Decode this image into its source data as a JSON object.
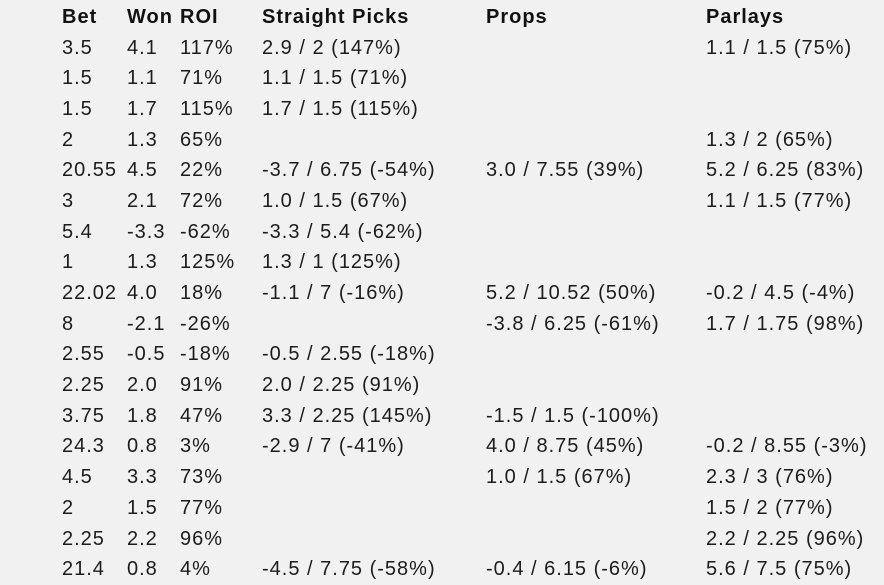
{
  "colors": {
    "background": "#f1f1f1",
    "header_text": "#111111",
    "neutral_text": "#1c1c1c",
    "positive": "#2e9b30",
    "negative": "#e9362c"
  },
  "chart_data": {
    "type": "table",
    "columns": [
      "Bet",
      "Won",
      "ROI",
      "Straight Picks",
      "Props",
      "Parlays"
    ],
    "column_keys": [
      "bet",
      "won",
      "roi",
      "straight-picks",
      "props",
      "parlays"
    ],
    "rows": [
      [
        {
          "t": "3.5",
          "c": "k"
        },
        {
          "t": "4.1",
          "c": "g"
        },
        {
          "t": "117%",
          "c": "g"
        },
        {
          "t": "2.9 / 2 (147%)",
          "c": "g"
        },
        {
          "t": "",
          "c": ""
        },
        {
          "t": "1.1 / 1.5 (75%)",
          "c": "g"
        }
      ],
      [
        {
          "t": "1.5",
          "c": "k"
        },
        {
          "t": "1.1",
          "c": "g"
        },
        {
          "t": "71%",
          "c": "g"
        },
        {
          "t": "1.1 / 1.5 (71%)",
          "c": "g"
        },
        {
          "t": "",
          "c": ""
        },
        {
          "t": "",
          "c": ""
        }
      ],
      [
        {
          "t": "1.5",
          "c": "k"
        },
        {
          "t": "1.7",
          "c": "g"
        },
        {
          "t": "115%",
          "c": "g"
        },
        {
          "t": "1.7 / 1.5 (115%)",
          "c": "g"
        },
        {
          "t": "",
          "c": ""
        },
        {
          "t": "",
          "c": ""
        }
      ],
      [
        {
          "t": "2",
          "c": "k"
        },
        {
          "t": "1.3",
          "c": "g"
        },
        {
          "t": "65%",
          "c": "g"
        },
        {
          "t": "",
          "c": ""
        },
        {
          "t": "",
          "c": ""
        },
        {
          "t": "1.3 / 2 (65%)",
          "c": "g"
        }
      ],
      [
        {
          "t": "20.55",
          "c": "k"
        },
        {
          "t": "4.5",
          "c": "g"
        },
        {
          "t": "22%",
          "c": "g"
        },
        {
          "t": "-3.7 / 6.75 (-54%)",
          "c": "r"
        },
        {
          "t": "3.0 / 7.55 (39%)",
          "c": "g"
        },
        {
          "t": "5.2 / 6.25 (83%)",
          "c": "g"
        }
      ],
      [
        {
          "t": "3",
          "c": "k"
        },
        {
          "t": "2.1",
          "c": "g"
        },
        {
          "t": "72%",
          "c": "g"
        },
        {
          "t": "1.0 / 1.5 (67%)",
          "c": "g"
        },
        {
          "t": "",
          "c": ""
        },
        {
          "t": "1.1 / 1.5 (77%)",
          "c": "g"
        }
      ],
      [
        {
          "t": "5.4",
          "c": "k"
        },
        {
          "t": "-3.3",
          "c": "r"
        },
        {
          "t": "-62%",
          "c": "r"
        },
        {
          "t": "-3.3 / 5.4 (-62%)",
          "c": "r"
        },
        {
          "t": "",
          "c": ""
        },
        {
          "t": "",
          "c": ""
        }
      ],
      [
        {
          "t": "1",
          "c": "k"
        },
        {
          "t": "1.3",
          "c": "g"
        },
        {
          "t": "125%",
          "c": "g"
        },
        {
          "t": "1.3 / 1 (125%)",
          "c": "g"
        },
        {
          "t": "",
          "c": ""
        },
        {
          "t": "",
          "c": ""
        }
      ],
      [
        {
          "t": "22.02",
          "c": "k"
        },
        {
          "t": "4.0",
          "c": "g"
        },
        {
          "t": "18%",
          "c": "g"
        },
        {
          "t": "-1.1 / 7 (-16%)",
          "c": "r"
        },
        {
          "t": "5.2 / 10.52 (50%)",
          "c": "g"
        },
        {
          "t": "-0.2 / 4.5 (-4%)",
          "c": "r"
        }
      ],
      [
        {
          "t": "8",
          "c": "k"
        },
        {
          "t": "-2.1",
          "c": "r"
        },
        {
          "t": "-26%",
          "c": "r"
        },
        {
          "t": "",
          "c": ""
        },
        {
          "t": "-3.8 / 6.25 (-61%)",
          "c": "r"
        },
        {
          "t": "1.7 / 1.75 (98%)",
          "c": "g"
        }
      ],
      [
        {
          "t": "2.55",
          "c": "k"
        },
        {
          "t": "-0.5",
          "c": "r"
        },
        {
          "t": "-18%",
          "c": "r"
        },
        {
          "t": "-0.5 / 2.55 (-18%)",
          "c": "r"
        },
        {
          "t": "",
          "c": ""
        },
        {
          "t": "",
          "c": ""
        }
      ],
      [
        {
          "t": "2.25",
          "c": "k"
        },
        {
          "t": "2.0",
          "c": "g"
        },
        {
          "t": "91%",
          "c": "g"
        },
        {
          "t": "2.0 / 2.25 (91%)",
          "c": "g"
        },
        {
          "t": "",
          "c": ""
        },
        {
          "t": "",
          "c": ""
        }
      ],
      [
        {
          "t": "3.75",
          "c": "k"
        },
        {
          "t": "1.8",
          "c": "g"
        },
        {
          "t": "47%",
          "c": "g"
        },
        {
          "t": "3.3 / 2.25 (145%)",
          "c": "g"
        },
        {
          "t": "-1.5 / 1.5 (-100%)",
          "c": "r"
        },
        {
          "t": "",
          "c": ""
        }
      ],
      [
        {
          "t": "24.3",
          "c": "k"
        },
        {
          "t": "0.8",
          "c": "g"
        },
        {
          "t": "3%",
          "c": "g"
        },
        {
          "t": "-2.9 / 7 (-41%)",
          "c": "r"
        },
        {
          "t": "4.0 / 8.75 (45%)",
          "c": "g"
        },
        {
          "t": "-0.2 / 8.55 (-3%)",
          "c": "r"
        }
      ],
      [
        {
          "t": "4.5",
          "c": "k"
        },
        {
          "t": "3.3",
          "c": "g"
        },
        {
          "t": "73%",
          "c": "g"
        },
        {
          "t": "",
          "c": ""
        },
        {
          "t": "1.0 / 1.5 (67%)",
          "c": "g"
        },
        {
          "t": "2.3 / 3 (76%)",
          "c": "g"
        }
      ],
      [
        {
          "t": "2",
          "c": "k"
        },
        {
          "t": "1.5",
          "c": "g"
        },
        {
          "t": "77%",
          "c": "g"
        },
        {
          "t": "",
          "c": ""
        },
        {
          "t": "",
          "c": ""
        },
        {
          "t": "1.5 / 2 (77%)",
          "c": "g"
        }
      ],
      [
        {
          "t": "2.25",
          "c": "k"
        },
        {
          "t": "2.2",
          "c": "g"
        },
        {
          "t": "96%",
          "c": "g"
        },
        {
          "t": "",
          "c": ""
        },
        {
          "t": "",
          "c": ""
        },
        {
          "t": "2.2 / 2.25 (96%)",
          "c": "g"
        }
      ],
      [
        {
          "t": "21.4",
          "c": "k"
        },
        {
          "t": "0.8",
          "c": "g"
        },
        {
          "t": "4%",
          "c": "g"
        },
        {
          "t": "-4.5 / 7.75 (-58%)",
          "c": "r"
        },
        {
          "t": "-0.4 / 6.15 (-6%)",
          "c": "r"
        },
        {
          "t": "5.6 / 7.5 (75%)",
          "c": "g"
        }
      ]
    ]
  }
}
